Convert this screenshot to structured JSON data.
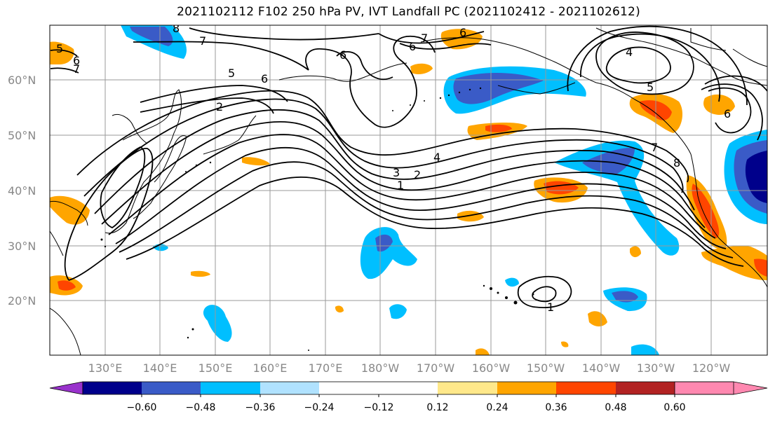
{
  "title": "2021102112 F102 250 hPa PV, IVT Landfall PC (2021102412 - 2021102612)",
  "lat_labels": [
    "60°N",
    "50°N",
    "40°N",
    "30°N",
    "20°N"
  ],
  "lon_labels": [
    "130°E",
    "140°E",
    "150°E",
    "160°E",
    "170°E",
    "180°W",
    "170°W",
    "160°W",
    "150°W",
    "140°W",
    "130°W",
    "120°W"
  ],
  "colorbar": {
    "ticks": [
      "−0.60",
      "−0.48",
      "−0.36",
      "−0.24",
      "−0.12",
      "0.12",
      "0.24",
      "0.36",
      "0.48",
      "0.60"
    ],
    "colors": [
      "#9932CC",
      "#00008B",
      "#3A5BC7",
      "#00BFFF",
      "#B0E2FF",
      "#FFFFFF",
      "#FFE88A",
      "#FFA500",
      "#FF4500",
      "#B22222",
      "#FF88B0"
    ]
  },
  "contour_labels": [
    "8",
    "7",
    "5",
    "6",
    "7",
    "5",
    "6",
    "2",
    "6",
    "6",
    "7",
    "6",
    "4",
    "5",
    "6",
    "4",
    "3",
    "2",
    "1",
    "7",
    "8",
    "1"
  ]
}
